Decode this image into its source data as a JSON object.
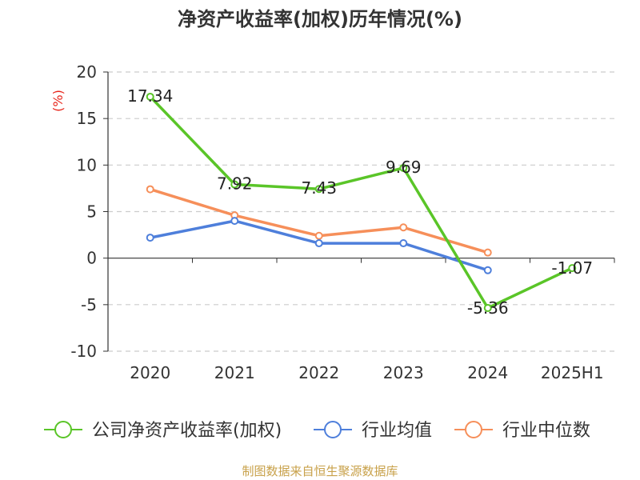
{
  "chart_data": {
    "type": "line",
    "title": "净资产收益率(加权)历年情况(%)",
    "unit_label": "(%)",
    "categories": [
      "2020",
      "2021",
      "2022",
      "2023",
      "2024",
      "2025H1"
    ],
    "ylim": [
      -10,
      20
    ],
    "yticks": [
      "20",
      "15",
      "10",
      "5",
      "0",
      "-5",
      "-10"
    ],
    "grid": true,
    "legend_position": "bottom",
    "series": [
      {
        "name": "公司净资产收益率(加权)",
        "color": "#5ac528",
        "values": [
          17.34,
          7.92,
          7.43,
          9.69,
          -5.36,
          -1.07
        ],
        "labels": [
          "17.34",
          "7.92",
          "7.43",
          "9.69",
          "-5.36",
          "-1.07"
        ]
      },
      {
        "name": "行业均值",
        "color": "#4e7fdb",
        "values": [
          2.2,
          4.0,
          1.6,
          1.6,
          -1.3,
          null
        ]
      },
      {
        "name": "行业中位数",
        "color": "#f68f5a",
        "values": [
          7.4,
          4.6,
          2.4,
          3.3,
          0.6,
          null
        ]
      }
    ],
    "source": "制图数据来自恒生聚源数据库"
  }
}
